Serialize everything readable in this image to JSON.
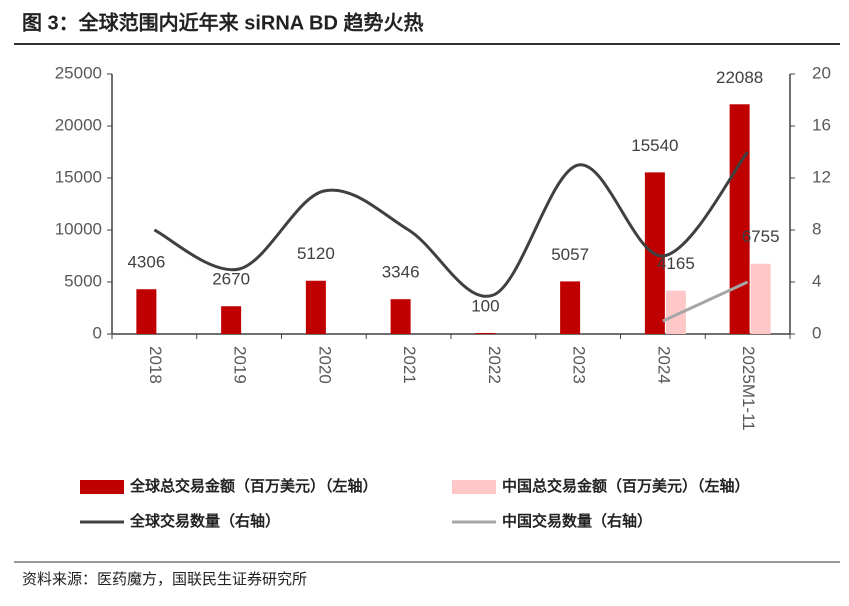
{
  "chart_data": {
    "type": "bar-line",
    "title": "图 3：全球范围内近年来 siRNA BD 趋势火热",
    "source": "资料来源：医药魔方，国联民生证券研究所",
    "categories": [
      "2018",
      "2019",
      "2020",
      "2021",
      "2022",
      "2023",
      "2024",
      "2025M1-11"
    ],
    "series": [
      {
        "name": "全球总交易金额（百万美元）（左轴）",
        "kind": "bar",
        "color": "#c00000",
        "values": [
          4306,
          2670,
          5120,
          3346,
          100,
          5057,
          15540,
          22088
        ]
      },
      {
        "name": "中国总交易金额（百万美元）（左轴）",
        "kind": "bar",
        "color": "#ffc7c7",
        "values": [
          null,
          null,
          null,
          null,
          null,
          null,
          4165,
          6755
        ]
      },
      {
        "name": "全球交易数量（右轴）",
        "kind": "line",
        "axis": "y2",
        "color": "#404040",
        "values": [
          8,
          5,
          11,
          8,
          3,
          13,
          6,
          14
        ]
      },
      {
        "name": "中国交易数量（右轴）",
        "kind": "line",
        "axis": "y2",
        "color": "#a6a6a6",
        "values": [
          null,
          null,
          null,
          null,
          null,
          null,
          1,
          4
        ]
      }
    ],
    "ylim": [
      0,
      25000
    ],
    "yticks": [
      0,
      5000,
      10000,
      15000,
      20000,
      25000
    ],
    "y2lim": [
      0,
      20
    ],
    "y2ticks": [
      0,
      4,
      8,
      12,
      16,
      20
    ]
  }
}
